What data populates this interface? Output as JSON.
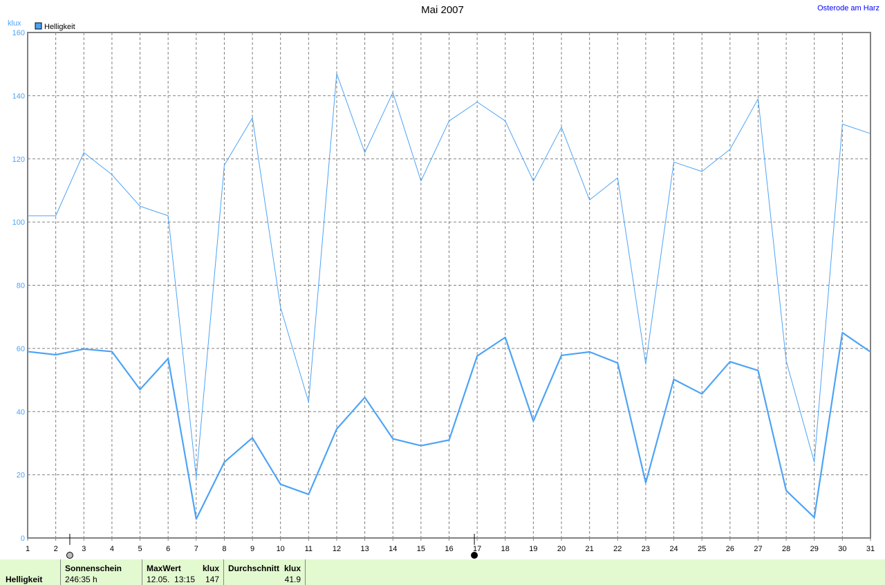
{
  "title": "Mai 2007",
  "location": "Osterode am Harz",
  "chart_data": {
    "type": "line",
    "title": "Mai 2007",
    "ylabel": "klux",
    "xlabel": "",
    "ylim": [
      0,
      160
    ],
    "xlim": [
      1,
      31
    ],
    "yticks": [
      0,
      20,
      40,
      60,
      80,
      100,
      120,
      140,
      160
    ],
    "x": [
      1,
      2,
      3,
      4,
      5,
      6,
      7,
      8,
      9,
      10,
      11,
      12,
      13,
      14,
      15,
      16,
      17,
      18,
      19,
      20,
      21,
      22,
      23,
      24,
      25,
      26,
      27,
      28,
      29,
      30,
      31
    ],
    "grid": true,
    "legend": {
      "placement": "top-left",
      "entries": [
        "Helligkeit"
      ]
    },
    "colors": {
      "series": "#4da3f5",
      "grid": "#808080",
      "axis_label": "#4da3f5"
    },
    "series": [
      {
        "name": "Helligkeit",
        "role": "max",
        "values": [
          102,
          102,
          122,
          115,
          105,
          102,
          19,
          118,
          133,
          73,
          43,
          147,
          122,
          141,
          113,
          132,
          138,
          132,
          113,
          130,
          107,
          114,
          55,
          119,
          116,
          123,
          139,
          56,
          24,
          131,
          128
        ]
      },
      {
        "role": "average",
        "values": [
          59,
          58,
          59.8,
          59,
          47,
          56.8,
          6,
          24,
          31.7,
          17,
          13.8,
          34.5,
          44.5,
          31.4,
          29.2,
          31,
          57.6,
          63.5,
          37,
          57.8,
          58.9,
          55.4,
          17.5,
          50.2,
          45.6,
          55.8,
          53,
          15,
          6.5,
          65,
          58.9
        ]
      }
    ],
    "moon_phases": [
      {
        "day": 2.5,
        "phase": "full-moon"
      },
      {
        "day": 16.9,
        "phase": "new-moon"
      }
    ]
  },
  "footer": {
    "label": "Helligkeit",
    "sunshine_header": "Sonnenschein",
    "sunshine_value": "246:35 h",
    "max_header": "MaxWert",
    "max_unit": "klux",
    "max_date": "12.05.  13:15",
    "max_value": "147",
    "avg_header": "Durchschnitt",
    "avg_unit": "klux",
    "avg_value": "41.9"
  }
}
